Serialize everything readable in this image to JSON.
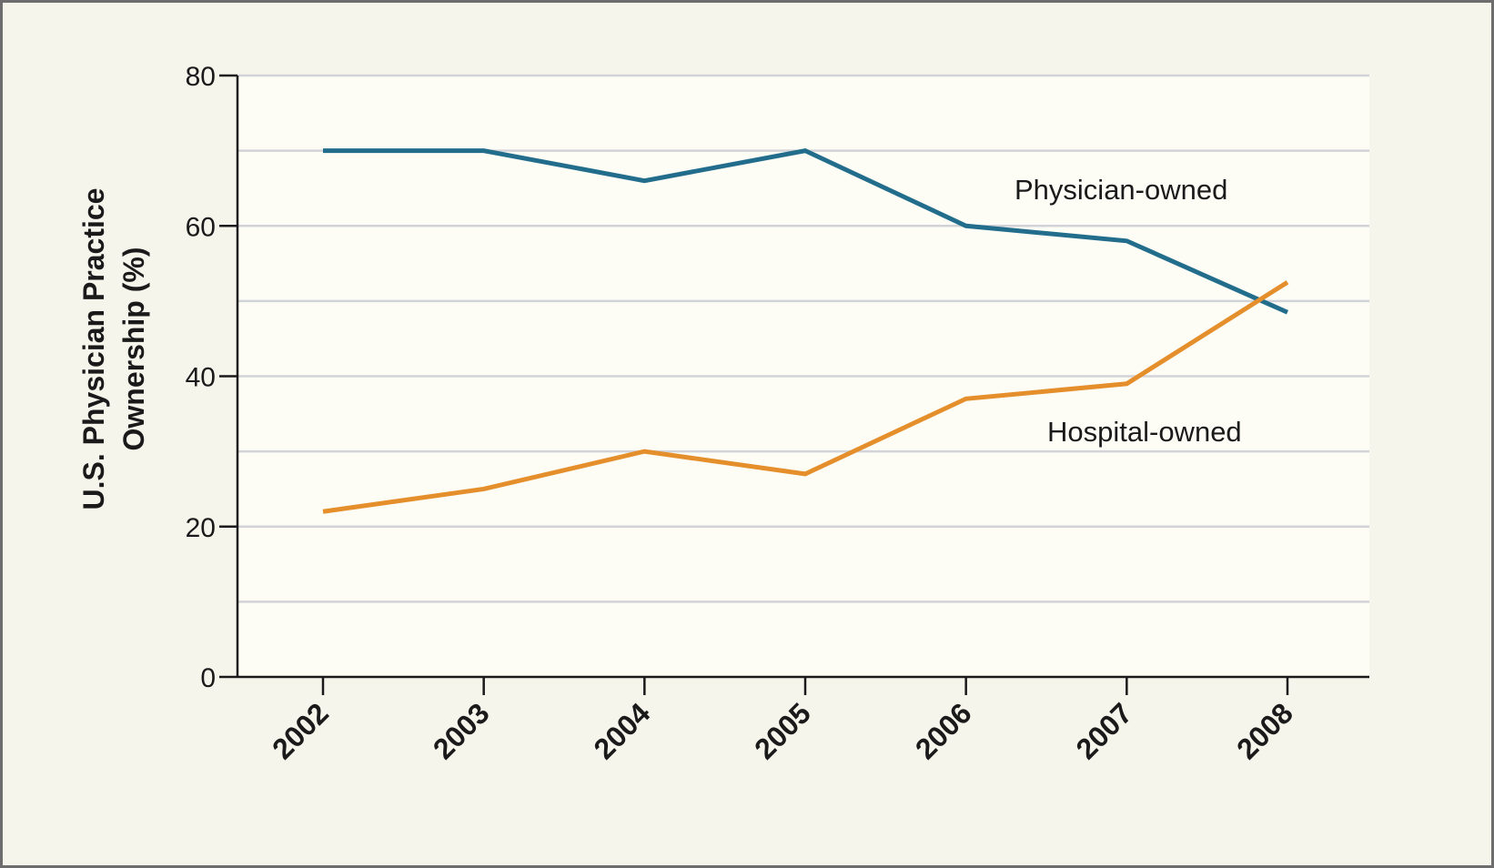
{
  "chart_data": {
    "type": "line",
    "x": [
      "2002",
      "2003",
      "2004",
      "2005",
      "2006",
      "2007",
      "2008"
    ],
    "series": [
      {
        "name": "Physician-owned",
        "values": [
          70,
          70,
          66,
          70,
          60,
          58,
          48.5
        ],
        "color": "#236d8c"
      },
      {
        "name": "Hospital-owned",
        "values": [
          22,
          25,
          30,
          27,
          37,
          39,
          52.5
        ],
        "color": "#e58f2c"
      }
    ],
    "ylabel_lines": [
      "U.S. Physician Practice",
      "Ownership (%)"
    ],
    "yticks": [
      0,
      20,
      40,
      60,
      80
    ],
    "ylim": [
      0,
      80
    ],
    "grid": true,
    "gridlines": [
      10,
      20,
      30,
      40,
      50,
      60,
      70,
      80
    ],
    "plot_background": "#fdfdf6",
    "page_background": "#f6f5ec",
    "gridline_color": "#d2d3d8",
    "axis_color": "#1a1a1a"
  }
}
